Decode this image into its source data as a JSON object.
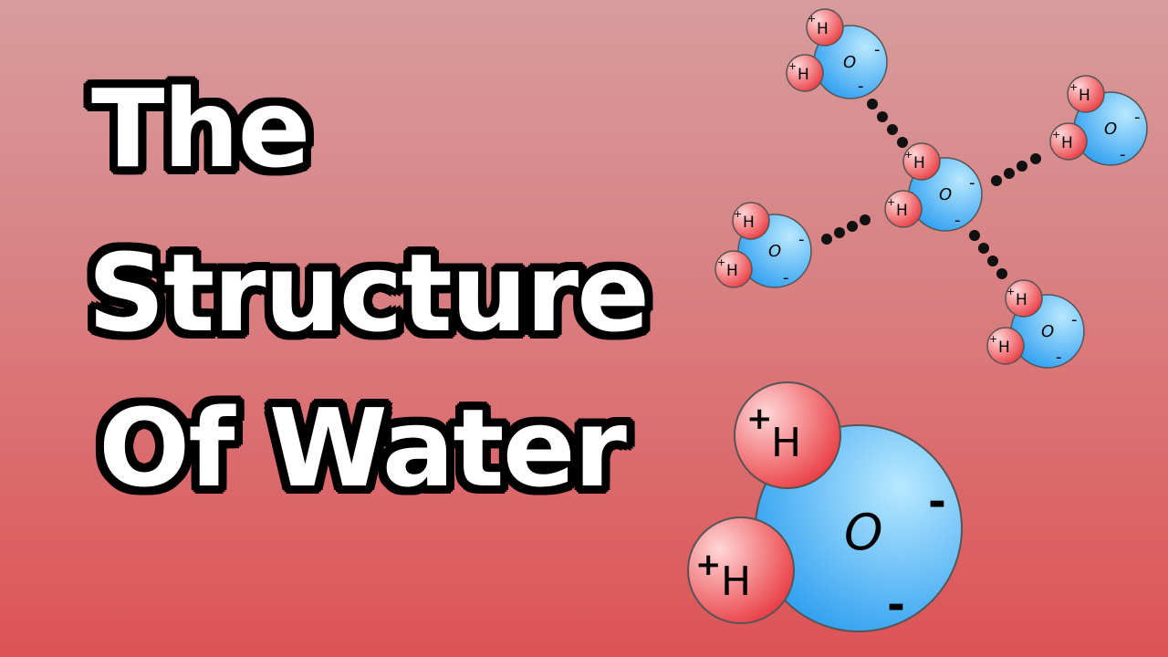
{
  "title": {
    "line1": "The",
    "line2": "Structure",
    "line3": "Of Water"
  },
  "labels": {
    "hydrogen": "H",
    "plus": "+",
    "oxygen": "O",
    "minus": "-"
  },
  "colors": {
    "oxygen_light": "#a8e0ff",
    "oxygen_dark": "#2e9ff0",
    "hydrogen_light": "#ffd0d0",
    "hydrogen_dark": "#e83a40",
    "outline": "#555555",
    "bond": "#111111",
    "title_fill": "#ffffff",
    "title_outline": "#000000"
  }
}
